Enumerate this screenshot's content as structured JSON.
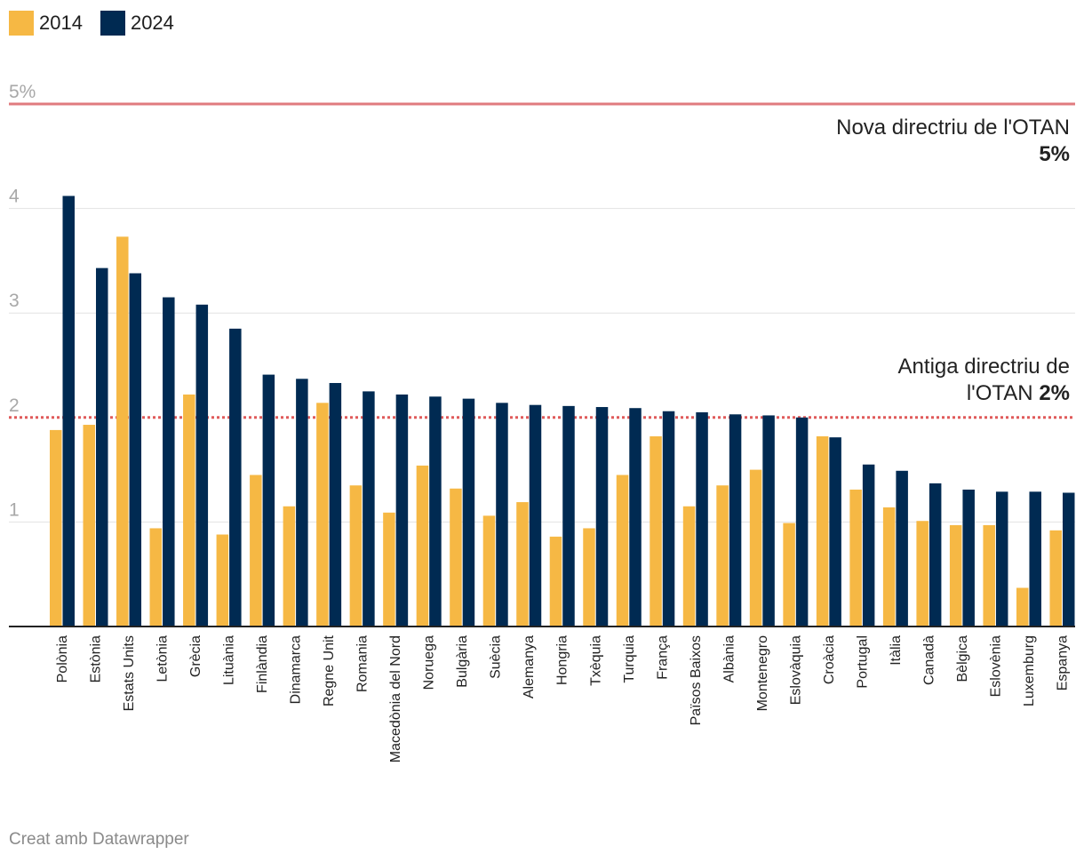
{
  "chart_data": {
    "type": "bar",
    "categories": [
      "Polònia",
      "Estònia",
      "Estats Units",
      "Letònia",
      "Grècia",
      "Lituània",
      "Finlàndia",
      "Dinamarca",
      "Regne Unit",
      "Romania",
      "Macedònia del Nord",
      "Noruega",
      "Bulgària",
      "Suècia",
      "Alemanya",
      "Hongria",
      "Txèquia",
      "Turquia",
      "França",
      "Països Baixos",
      "Albània",
      "Montenegro",
      "Eslovàquia",
      "Croàcia",
      "Portugal",
      "Itàlia",
      "Canadà",
      "Bèlgica",
      "Eslovènia",
      "Luxemburg",
      "Espanya"
    ],
    "series": [
      {
        "name": "2014",
        "color": "#f6b844",
        "values": [
          1.88,
          1.93,
          3.73,
          0.94,
          2.22,
          0.88,
          1.45,
          1.15,
          2.14,
          1.35,
          1.09,
          1.54,
          1.32,
          1.06,
          1.19,
          0.86,
          0.94,
          1.45,
          1.82,
          1.15,
          1.35,
          1.5,
          0.99,
          1.82,
          1.31,
          1.14,
          1.01,
          0.97,
          0.97,
          0.37,
          0.92
        ]
      },
      {
        "name": "2024",
        "color": "#002a52",
        "values": [
          4.12,
          3.43,
          3.38,
          3.15,
          3.08,
          2.85,
          2.41,
          2.37,
          2.33,
          2.25,
          2.22,
          2.2,
          2.18,
          2.14,
          2.12,
          2.11,
          2.1,
          2.09,
          2.06,
          2.05,
          2.03,
          2.02,
          2.0,
          1.81,
          1.55,
          1.49,
          1.37,
          1.31,
          1.29,
          1.29,
          1.28
        ]
      }
    ],
    "yticks": [
      {
        "value": 1,
        "label": "1"
      },
      {
        "value": 2,
        "label": "2"
      },
      {
        "value": 3,
        "label": "3"
      },
      {
        "value": 4,
        "label": "4"
      },
      {
        "value": 5,
        "label": "5%"
      }
    ],
    "ylim": [
      0,
      5
    ],
    "reference_lines": [
      {
        "value": 5,
        "style": "solid",
        "color": "#e07b7f"
      },
      {
        "value": 2,
        "style": "dotted",
        "color": "#e05a5a"
      }
    ],
    "grid": true,
    "legend_position": "top-left"
  },
  "annotations": {
    "new_line1": "Nova directriu de l'OTAN",
    "new_bold": "5%",
    "old_line1": "Antiga directriu de",
    "old_line2": "l'OTAN",
    "old_bold": "2%"
  },
  "legend": {
    "label_2014": "2014",
    "label_2024": "2024",
    "color_2014": "#f6b844",
    "color_2024": "#002a52"
  },
  "credit": "Creat amb Datawrapper"
}
